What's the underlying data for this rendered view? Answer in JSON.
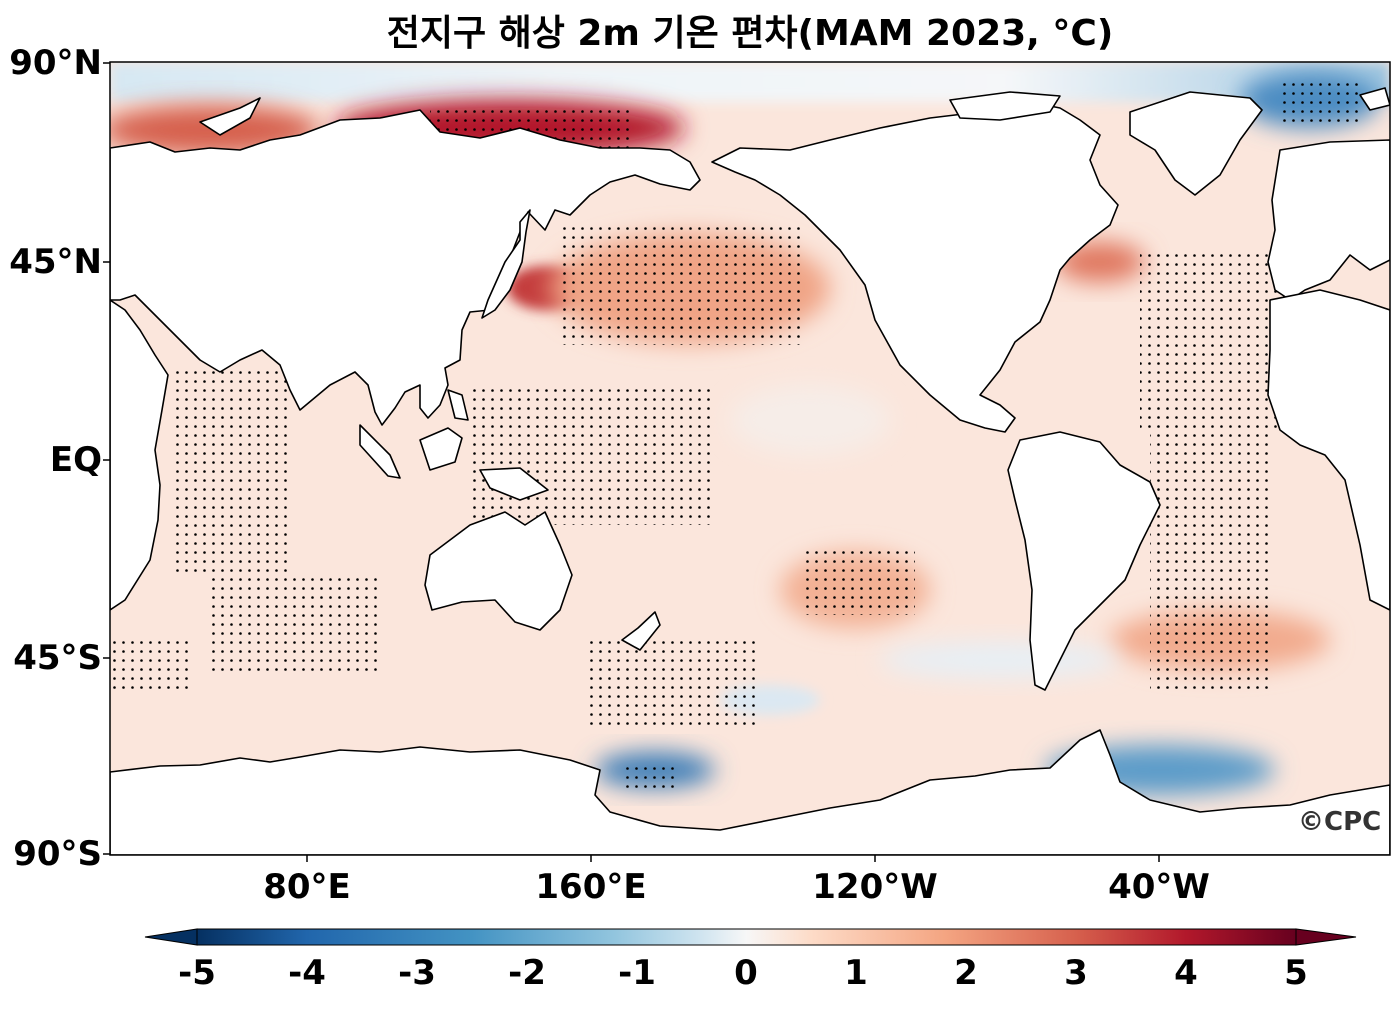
{
  "title": "전지구 해상 2m 기온 편차(MAM 2023, °C)",
  "map": {
    "variable": "2m air temperature anomaly over ocean",
    "season": "MAM 2023",
    "units": "°C",
    "projection": "plate carrée, centered on 180°"
  },
  "axes": {
    "lat_labels": [
      "90°N",
      "45°N",
      "EQ",
      "45°S",
      "90°S"
    ],
    "lon_labels": [
      "80°E",
      "160°E",
      "120°W",
      "40°W"
    ]
  },
  "colorbar": {
    "ticks": [
      "-5",
      "-4",
      "-3",
      "-2",
      "-1",
      "0",
      "1",
      "2",
      "3",
      "4",
      "5"
    ],
    "range": [
      -5,
      5
    ],
    "extend": "both"
  },
  "credit": "©CPC",
  "colors": {
    "strong_cold": "#0b3d7a",
    "cold": "#4393c3",
    "neutral": "#f7f7f7",
    "warm": "#f4a582",
    "strong_warm": "#67001f",
    "land": "#ffffff"
  }
}
